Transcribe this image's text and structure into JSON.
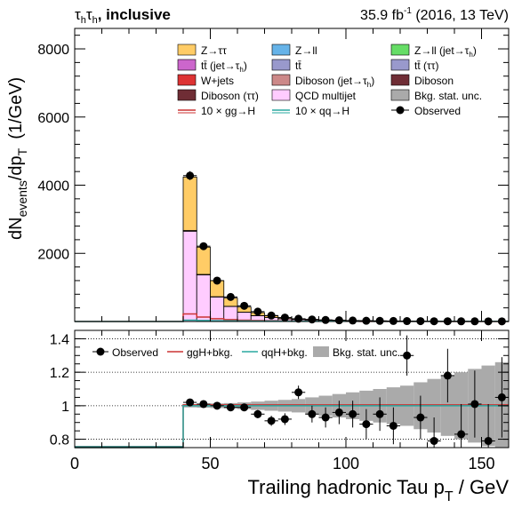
{
  "header": {
    "channel": "τ",
    "channel_sub1": "h",
    "channel_mid": "τ",
    "channel_sub2": "h",
    "channel_rest": ", inclusive",
    "lumi_pre": "35.9 fb",
    "lumi_exp": "-1",
    "lumi_post": " (2016, 13 TeV)"
  },
  "chart_data": [
    {
      "panel": "main",
      "type": "bar",
      "ylabel_parts": {
        "main": "dN",
        "sub1": "events",
        "mid": "/dp",
        "sub2": "T",
        "unit": "(1/GeV)"
      },
      "xlim": [
        0,
        160
      ],
      "ylim": [
        0,
        8600
      ],
      "yticks": [
        2000,
        4000,
        6000,
        8000
      ],
      "bins": [
        40,
        45,
        50,
        55,
        60,
        65,
        70,
        75,
        80,
        85,
        90,
        95,
        100,
        105,
        110,
        115,
        120,
        125,
        130,
        135,
        140,
        145,
        150,
        155,
        160
      ],
      "stack": [
        {
          "name": "QCD multijet",
          "color": "#ffccff",
          "values": [
            2650,
            1370,
            720,
            440,
            270,
            170,
            115,
            80,
            60,
            45,
            35,
            28,
            22,
            18,
            14,
            12,
            10,
            8,
            7,
            6,
            5,
            4,
            4,
            3
          ]
        },
        {
          "name": "Diboson",
          "color": "#6f2d35",
          "values": [
            20,
            12,
            8,
            6,
            4,
            3,
            2,
            2,
            1,
            1,
            1,
            1,
            1,
            1,
            0,
            0,
            0,
            0,
            0,
            0,
            0,
            0,
            0,
            0
          ]
        },
        {
          "name": "Z→ττ",
          "color": "#ffcc66",
          "values": [
            1570,
            800,
            470,
            240,
            150,
            85,
            50,
            30,
            20,
            15,
            10,
            8,
            6,
            5,
            4,
            3,
            3,
            2,
            2,
            2,
            1,
            1,
            1,
            1
          ]
        }
      ],
      "signal_lines": [
        {
          "name": "10 × gg→H",
          "color": "#cc3333",
          "values": [
            220,
            130,
            80,
            55,
            40,
            30,
            22,
            17,
            13,
            10,
            8,
            6,
            5,
            4,
            3,
            3,
            2,
            2,
            2,
            1,
            1,
            1,
            1,
            1
          ]
        },
        {
          "name": "10 × qq→H",
          "color": "#2aa8a0",
          "values": [
            40,
            30,
            24,
            20,
            17,
            14,
            12,
            10,
            9,
            8,
            7,
            6,
            5,
            5,
            4,
            4,
            3,
            3,
            3,
            2,
            2,
            2,
            2,
            2
          ]
        }
      ],
      "observed": {
        "x": [
          42.5,
          47.5,
          52.5,
          57.5,
          62.5,
          67.5,
          72.5,
          77.5,
          82.5,
          87.5,
          92.5,
          97.5,
          102.5,
          107.5,
          112.5,
          117.5,
          122.5,
          127.5,
          132.5,
          137.5,
          142.5,
          147.5,
          152.5,
          157.5
        ],
        "y": [
          4280,
          2210,
          1200,
          720,
          460,
          290,
          175,
          115,
          80,
          60,
          45,
          35,
          28,
          22,
          18,
          15,
          12,
          10,
          8,
          7,
          6,
          5,
          4,
          4
        ]
      },
      "legend": [
        {
          "label": "Z→ττ",
          "kind": "box",
          "color": "#ffcc66"
        },
        {
          "label": "Z→ll",
          "kind": "box",
          "color": "#66b3e8"
        },
        {
          "label": "Z→ll (jet→τ",
          "sub": "h",
          "tail": ")",
          "kind": "box",
          "color": "#66dd66"
        },
        {
          "label": "tt̄ (jet→τ",
          "sub": "h",
          "tail": ")",
          "kind": "box",
          "color": "#cc66cc"
        },
        {
          "label": "tt̄",
          "kind": "box",
          "color": "#9999cc"
        },
        {
          "label": "tt̄ (ττ)",
          "kind": "box",
          "color": "#9999cc"
        },
        {
          "label": "W+jets",
          "kind": "box",
          "color": "#dd3333"
        },
        {
          "label": "Diboson (jet→τ",
          "sub": "h",
          "tail": ")",
          "kind": "box",
          "color": "#cc8888"
        },
        {
          "label": "Diboson",
          "kind": "box",
          "color": "#6f2d35"
        },
        {
          "label": "Diboson (ττ)",
          "kind": "box",
          "color": "#6f2d35"
        },
        {
          "label": "QCD multijet",
          "kind": "box",
          "color": "#ffccff"
        },
        {
          "label": "Bkg. stat. unc.",
          "kind": "box",
          "color": "#aaaaaa"
        },
        {
          "label": "10 × gg→H",
          "kind": "line",
          "color": "#cc3333"
        },
        {
          "label": "10 × qq→H",
          "kind": "line",
          "color": "#2aa8a0"
        },
        {
          "label": "Observed",
          "kind": "marker",
          "color": "#000000"
        }
      ]
    },
    {
      "panel": "ratio",
      "type": "scatter",
      "xlabel_pre": "Trailing hadronic Tau p",
      "xlabel_sub": "T",
      "xlabel_post": " / GeV",
      "xlim": [
        0,
        160
      ],
      "ylim": [
        0.75,
        1.45
      ],
      "yticks": [
        0.8,
        1,
        1.2,
        1.4
      ],
      "ytick_labels": [
        "0.8",
        "1",
        "1.2",
        "1.4"
      ],
      "xticks": [
        0,
        50,
        100,
        150
      ],
      "grid_y": [
        0.8,
        1,
        1.2,
        1.4
      ],
      "unc_band": {
        "bins": [
          40,
          45,
          50,
          55,
          60,
          65,
          70,
          75,
          80,
          85,
          90,
          95,
          100,
          105,
          110,
          115,
          120,
          125,
          130,
          135,
          140,
          145,
          150,
          155,
          160
        ],
        "half_width": [
          0.01,
          0.012,
          0.014,
          0.016,
          0.02,
          0.025,
          0.03,
          0.035,
          0.04,
          0.05,
          0.06,
          0.07,
          0.08,
          0.09,
          0.1,
          0.11,
          0.12,
          0.14,
          0.16,
          0.18,
          0.2,
          0.22,
          0.24,
          0.26
        ]
      },
      "lines": [
        {
          "name": "ggH+bkg.",
          "color": "#cc3333",
          "values": [
            1.005,
            1.005,
            1.005,
            1.005,
            1.005,
            1.005,
            1.005,
            1.005,
            1.005,
            1.005,
            1.005,
            1.005,
            1.005,
            1.005,
            1.005,
            1.005,
            1.005,
            1.005,
            1.005,
            1.005,
            1.005,
            1.005,
            1.005,
            1.005
          ]
        },
        {
          "name": "qqH+bkg.",
          "color": "#2aa8a0",
          "values": [
            1.0,
            1.0,
            1.0,
            1.0,
            1.0,
            1.0,
            1.0,
            1.0,
            1.0,
            1.0,
            1.0,
            1.0,
            1.0,
            1.0,
            1.0,
            1.0,
            1.0,
            1.0,
            1.0,
            1.0,
            1.0,
            1.0,
            1.0,
            1.0
          ]
        }
      ],
      "observed": {
        "x": [
          42.5,
          47.5,
          52.5,
          57.5,
          62.5,
          67.5,
          72.5,
          77.5,
          82.5,
          87.5,
          92.5,
          97.5,
          102.5,
          107.5,
          112.5,
          117.5,
          122.5,
          127.5,
          132.5,
          137.5,
          142.5,
          147.5,
          152.5,
          157.5
        ],
        "y": [
          1.02,
          1.01,
          1.0,
          0.99,
          0.99,
          0.95,
          0.91,
          0.92,
          1.08,
          0.95,
          0.93,
          0.96,
          0.95,
          0.89,
          0.95,
          0.88,
          1.3,
          0.93,
          0.79,
          1.18,
          0.83,
          1.01,
          0.79,
          1.05
        ],
        "err": [
          0.01,
          0.015,
          0.018,
          0.02,
          0.02,
          0.025,
          0.03,
          0.035,
          0.04,
          0.05,
          0.06,
          0.07,
          0.08,
          0.09,
          0.1,
          0.11,
          0.12,
          0.13,
          0.14,
          0.16,
          0.18,
          0.2,
          0.22,
          0.24
        ]
      },
      "legend": [
        {
          "label": "Observed",
          "kind": "marker",
          "color": "#000000"
        },
        {
          "label": "ggH+bkg.",
          "kind": "line",
          "color": "#cc3333"
        },
        {
          "label": "qqH+bkg.",
          "kind": "line",
          "color": "#2aa8a0"
        },
        {
          "label": "Bkg. stat. unc.",
          "kind": "box",
          "color": "#aaaaaa"
        }
      ]
    }
  ]
}
